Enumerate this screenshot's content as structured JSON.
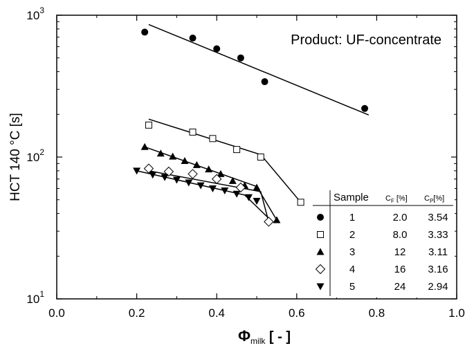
{
  "chart_data": {
    "type": "scatter",
    "title": "",
    "xlabel": "Φ",
    "xlabel_sub": "milk",
    "xlabel_unit": " [ - ]",
    "ylabel": "HCT 140 °C [s]",
    "xlim": [
      0.0,
      1.0
    ],
    "ylim": [
      10,
      1000
    ],
    "yscale": "log",
    "x_ticks": [
      "0.0",
      "0.2",
      "0.4",
      "0.6",
      "0.8",
      "1.0"
    ],
    "y_ticks": [
      {
        "base": "10",
        "exp": "1"
      },
      {
        "base": "10",
        "exp": "2"
      },
      {
        "base": "10",
        "exp": "3"
      }
    ],
    "grid": false,
    "annotation": "Product: UF-concentrate",
    "series": [
      {
        "marker": "filled-circle",
        "points": [
          [
            0.22,
            760
          ],
          [
            0.34,
            690
          ],
          [
            0.4,
            580
          ],
          [
            0.46,
            500
          ],
          [
            0.52,
            340
          ],
          [
            0.77,
            220
          ]
        ],
        "fit": [
          [
            0.23,
            860
          ],
          [
            0.78,
            198
          ]
        ]
      },
      {
        "marker": "open-square",
        "points": [
          [
            0.23,
            168
          ],
          [
            0.34,
            150
          ],
          [
            0.39,
            135
          ],
          [
            0.45,
            113
          ],
          [
            0.51,
            100
          ],
          [
            0.61,
            48
          ]
        ],
        "fit": [
          [
            0.23,
            185
          ],
          [
            0.51,
            104
          ],
          [
            0.61,
            48
          ]
        ]
      },
      {
        "marker": "filled-triangle-up",
        "points": [
          [
            0.22,
            118
          ],
          [
            0.26,
            106
          ],
          [
            0.29,
            101
          ],
          [
            0.32,
            94
          ],
          [
            0.35,
            88
          ],
          [
            0.38,
            82
          ],
          [
            0.41,
            76
          ],
          [
            0.44,
            68
          ],
          [
            0.47,
            63
          ],
          [
            0.5,
            61
          ],
          [
            0.55,
            36
          ]
        ],
        "fit": [
          [
            0.22,
            118
          ],
          [
            0.5,
            62
          ],
          [
            0.55,
            36
          ]
        ]
      },
      {
        "marker": "open-diamond",
        "points": [
          [
            0.23,
            83
          ],
          [
            0.28,
            79
          ],
          [
            0.34,
            76
          ],
          [
            0.4,
            70
          ],
          [
            0.46,
            61
          ],
          [
            0.53,
            35
          ]
        ],
        "fit": [
          [
            0.23,
            80
          ],
          [
            0.51,
            57
          ],
          [
            0.53,
            35
          ]
        ]
      },
      {
        "marker": "filled-triangle-down",
        "points": [
          [
            0.2,
            80
          ],
          [
            0.24,
            75
          ],
          [
            0.27,
            72
          ],
          [
            0.3,
            69
          ],
          [
            0.33,
            66
          ],
          [
            0.36,
            63
          ],
          [
            0.39,
            60
          ],
          [
            0.42,
            58
          ],
          [
            0.45,
            55
          ],
          [
            0.48,
            52
          ],
          [
            0.5,
            49
          ]
        ],
        "fit": [
          [
            0.2,
            80
          ],
          [
            0.47,
            54
          ],
          [
            0.53,
            37
          ]
        ]
      }
    ],
    "legend": {
      "placement": "bottom-right",
      "header": {
        "sample": "Sample",
        "cf": "C",
        "cf_sub": "F",
        "cf_unit": " [%]",
        "cp": "C",
        "cp_sub": "P",
        "cp_unit": "[%]"
      },
      "rows": [
        {
          "marker": "filled-circle",
          "sample": "1",
          "cf": "2.0",
          "cp": "3.54"
        },
        {
          "marker": "open-square",
          "sample": "2",
          "cf": "8.0",
          "cp": "3.33"
        },
        {
          "marker": "filled-triangle-up",
          "sample": "3",
          "cf": "12",
          "cp": "3.11"
        },
        {
          "marker": "open-diamond",
          "sample": "4",
          "cf": "16",
          "cp": "3.16"
        },
        {
          "marker": "filled-triangle-down",
          "sample": "5",
          "cf": "24",
          "cp": "2.94"
        }
      ]
    }
  }
}
